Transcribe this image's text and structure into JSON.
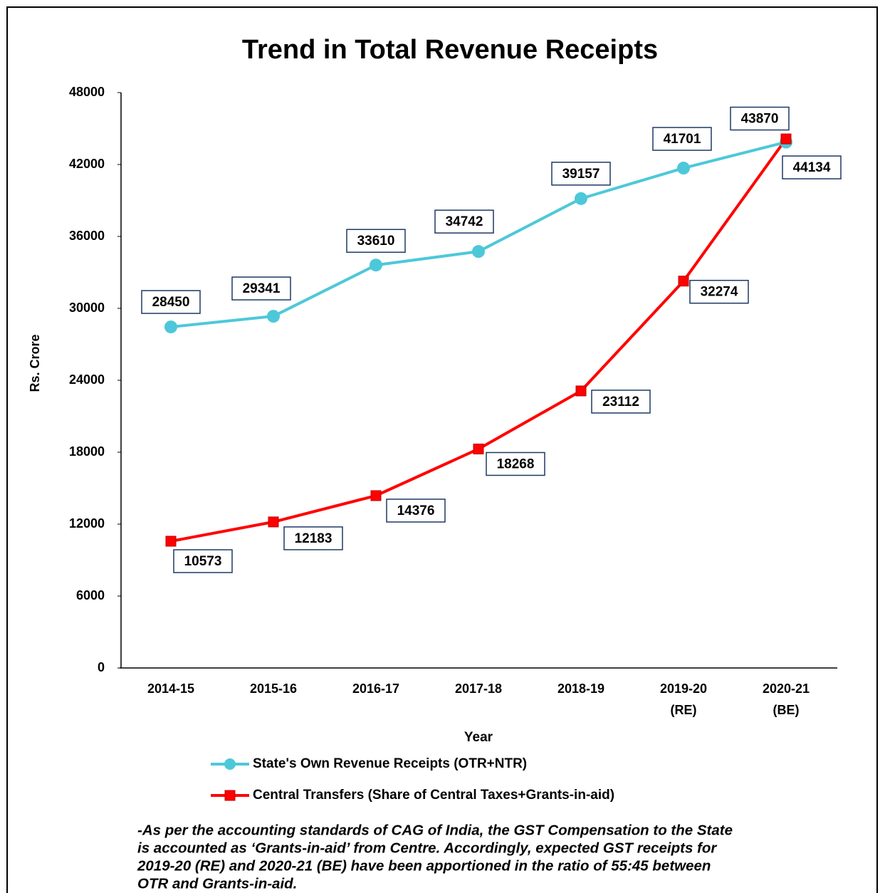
{
  "chart_data": {
    "type": "line",
    "title": "Trend in Total Revenue Receipts",
    "y_label": "Rs. Crore",
    "x_label": "Year",
    "categories": [
      "2014-15",
      "2015-16",
      "2016-17",
      "2017-18",
      "2018-19",
      "2019-20 (RE)",
      "2020-21 (BE)"
    ],
    "series": [
      {
        "name": "State's Own Revenue Receipts (OTR+NTR)",
        "color": "#4dc8d9",
        "marker": "circle",
        "values": [
          28450,
          29341,
          33610,
          34742,
          39157,
          41701,
          43870
        ]
      },
      {
        "name": "Central Transfers (Share of Central Taxes+Grants-in-aid)",
        "color": "#ff0000",
        "marker": "square",
        "values": [
          10573,
          12183,
          14376,
          18268,
          23112,
          32274,
          44134
        ]
      }
    ],
    "ylim": [
      0,
      48000
    ],
    "yticks": [
      0,
      6000,
      12000,
      18000,
      24000,
      30000,
      36000,
      42000,
      48000
    ],
    "grid": false,
    "note": [
      "-As per the accounting standards of CAG of India, the GST Compensation to the State",
      "is accounted as ‘Grants-in-aid’ from Centre. Accordingly, expected GST receipts for",
      "2019-20 (RE)  and 2020-21 (BE) have been apportioned in the ratio of 55:45 between",
      "OTR and Grants-in-aid."
    ]
  }
}
